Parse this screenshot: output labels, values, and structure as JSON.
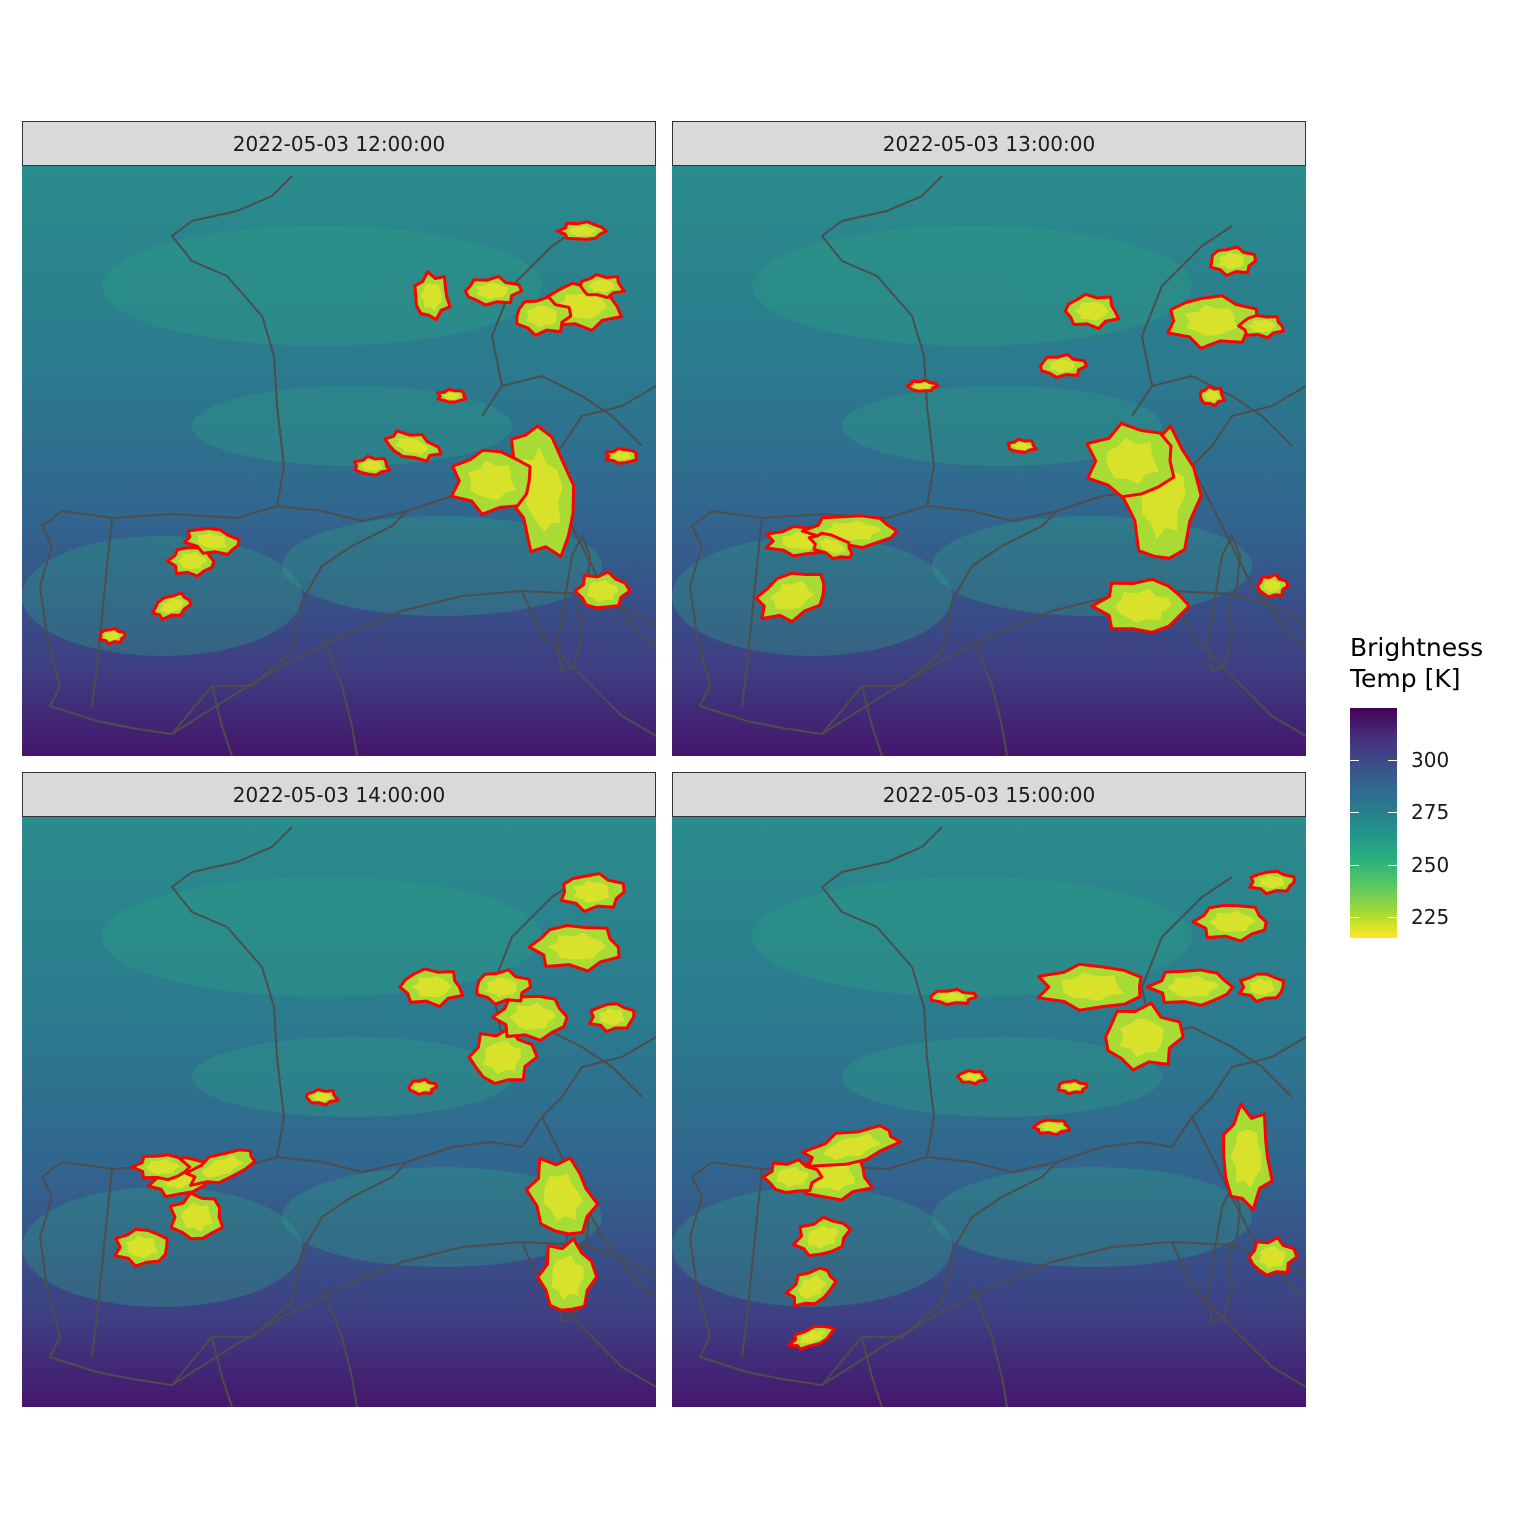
{
  "panels": [
    {
      "title": "2022-05-03 12:00:00"
    },
    {
      "title": "2022-05-03 13:00:00"
    },
    {
      "title": "2022-05-03 14:00:00"
    },
    {
      "title": "2022-05-03 15:00:00"
    }
  ],
  "legend": {
    "title_line1": "Brightness",
    "title_line2": "Temp [K]",
    "ticks": [
      "300",
      "275",
      "250",
      "225"
    ],
    "colormap": "viridis (reversed: low = yellow, high = purple)"
  },
  "colors": {
    "contour": "#ff0000",
    "coastline": "#4d4d4d",
    "cold": "#fde725",
    "warm": "#440154"
  }
}
